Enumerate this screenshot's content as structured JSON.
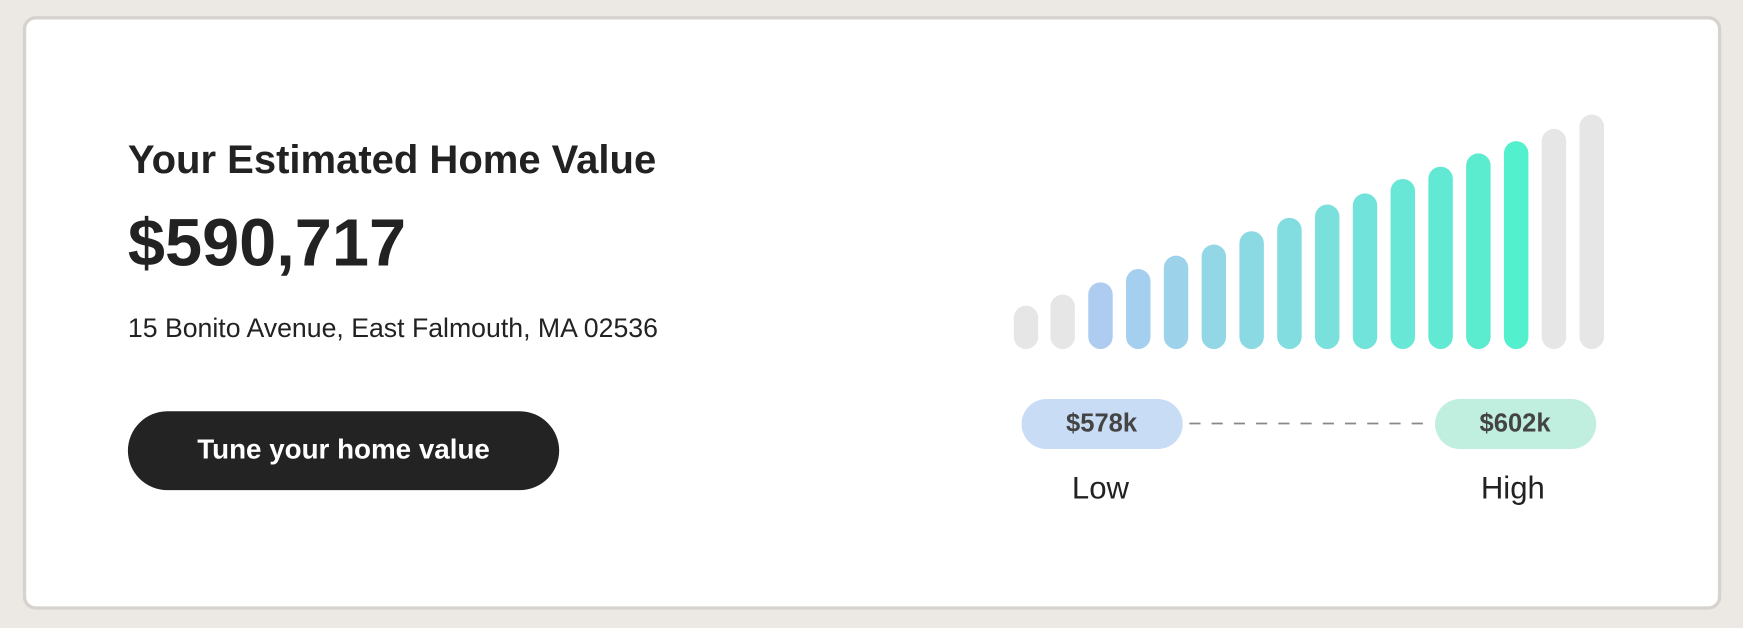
{
  "header": {
    "title": "Your Estimated Home Value",
    "value": "$590,717",
    "address": "15 Bonito Avenue, East Falmouth, MA 02536"
  },
  "button": {
    "label": "Tune your home value"
  },
  "range": {
    "low": {
      "value": "$578k",
      "label": "Low"
    },
    "high": {
      "value": "$602k",
      "label": "High"
    }
  }
}
